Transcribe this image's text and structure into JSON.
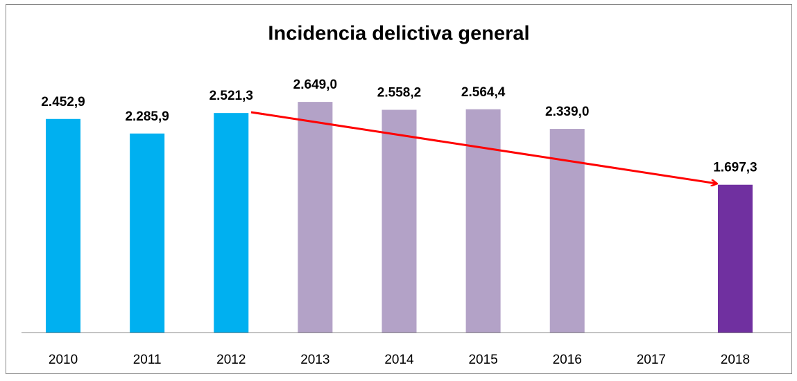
{
  "chart_data": {
    "type": "bar",
    "title": "Incidencia delictiva general",
    "categories": [
      "2010",
      "2011",
      "2012",
      "2013",
      "2014",
      "2015",
      "2016",
      "2017",
      "2018"
    ],
    "values": [
      2452.9,
      2285.9,
      2521.3,
      2649.0,
      2558.2,
      2564.4,
      2339.0,
      null,
      1697.3
    ],
    "value_labels": [
      "2.452,9",
      "2.285,9",
      "2.521,3",
      "2.649,0",
      "2.558,2",
      "2.564,4",
      "2.339,0",
      null,
      "1.697,3"
    ],
    "colors": [
      "#00b0f0",
      "#00b0f0",
      "#00b0f0",
      "#b3a2c7",
      "#b3a2c7",
      "#b3a2c7",
      "#b3a2c7",
      null,
      "#7030a0"
    ],
    "ylim": [
      0,
      3000
    ]
  }
}
